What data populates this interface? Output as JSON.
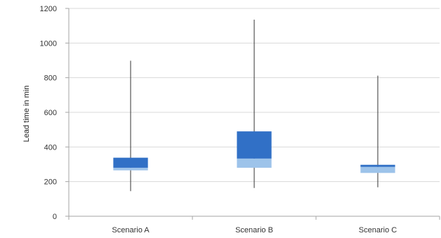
{
  "chart_data": {
    "type": "box",
    "title": "",
    "xlabel": "",
    "ylabel": "Lead time in min",
    "ylim": [
      0,
      1200
    ],
    "yticks": [
      0,
      200,
      400,
      600,
      800,
      1000,
      1200
    ],
    "grid": true,
    "legend": "none",
    "colors": {
      "upper_box": "#3170C6",
      "lower_box": "#9DC3EA",
      "whisker": "#333333",
      "grid": "#D9D9D9",
      "axis": "#A6A6A6"
    },
    "categories": [
      "Scenario A",
      "Scenario B",
      "Scenario C"
    ],
    "series": [
      {
        "min": 145,
        "q1": 265,
        "median": 280,
        "q3": 338,
        "max": 898
      },
      {
        "min": 163,
        "q1": 280,
        "median": 333,
        "q3": 490,
        "max": 1135
      },
      {
        "min": 167,
        "q1": 250,
        "median": 285,
        "q3": 297,
        "max": 812
      }
    ]
  }
}
